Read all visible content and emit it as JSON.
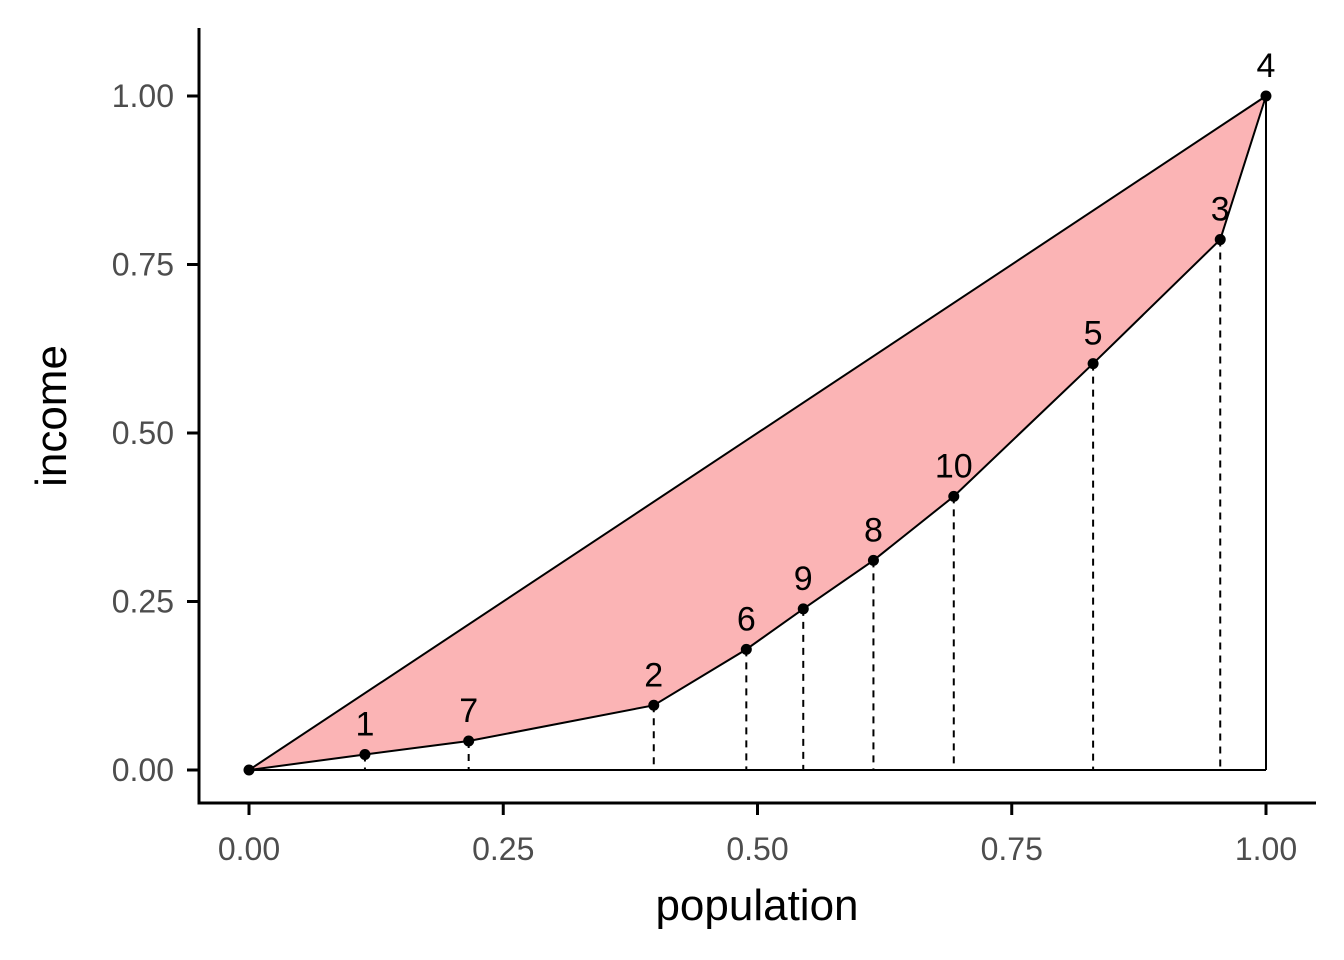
{
  "chart_data": {
    "type": "area",
    "xlabel": "population",
    "ylabel": "income",
    "xlim": [
      0,
      1
    ],
    "ylim": [
      0,
      1
    ],
    "x_ticks": [
      "0.00",
      "0.25",
      "0.50",
      "0.75",
      "1.00"
    ],
    "y_ticks": [
      "0.00",
      "0.25",
      "0.50",
      "0.75",
      "1.00"
    ],
    "grid": false,
    "fill_color": "#fbb4b5",
    "line_color": "#000000",
    "origin": {
      "x": 0,
      "y": 0
    },
    "points": [
      {
        "label": "1",
        "x": 0.114,
        "y": 0.023
      },
      {
        "label": "7",
        "x": 0.216,
        "y": 0.043
      },
      {
        "label": "2",
        "x": 0.398,
        "y": 0.096
      },
      {
        "label": "6",
        "x": 0.489,
        "y": 0.179
      },
      {
        "label": "9",
        "x": 0.545,
        "y": 0.239
      },
      {
        "label": "8",
        "x": 0.614,
        "y": 0.311
      },
      {
        "label": "10",
        "x": 0.693,
        "y": 0.406
      },
      {
        "label": "5",
        "x": 0.83,
        "y": 0.603
      },
      {
        "label": "3",
        "x": 0.955,
        "y": 0.787
      },
      {
        "label": "4",
        "x": 1.0,
        "y": 1.0
      }
    ]
  }
}
